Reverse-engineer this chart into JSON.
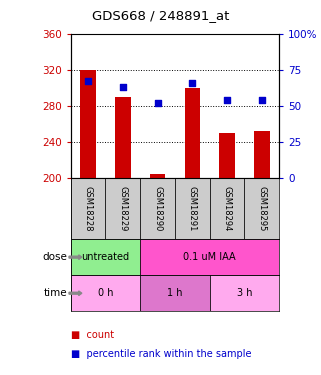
{
  "title": "GDS668 / 248891_at",
  "samples": [
    "GSM18228",
    "GSM18229",
    "GSM18290",
    "GSM18291",
    "GSM18294",
    "GSM18295"
  ],
  "bar_bottoms": [
    200,
    200,
    200,
    200,
    200,
    200
  ],
  "bar_tops": [
    320,
    290,
    205,
    300,
    250,
    252
  ],
  "percentile_values": [
    67,
    63,
    52,
    66,
    54,
    54
  ],
  "ylim_left": [
    200,
    360
  ],
  "ylim_right": [
    0,
    100
  ],
  "yticks_left": [
    200,
    240,
    280,
    320,
    360
  ],
  "yticks_right": [
    0,
    25,
    50,
    75,
    100
  ],
  "bar_color": "#cc0000",
  "dot_color": "#0000cc",
  "bar_width": 0.45,
  "dose_labels": [
    {
      "label": "untreated",
      "start": 0,
      "end": 2,
      "color": "#90ee90"
    },
    {
      "label": "0.1 uM IAA",
      "start": 2,
      "end": 6,
      "color": "#ff55cc"
    }
  ],
  "time_labels": [
    {
      "label": "0 h",
      "start": 0,
      "end": 2,
      "color": "#ffaaee"
    },
    {
      "label": "1 h",
      "start": 2,
      "end": 4,
      "color": "#dd77cc"
    },
    {
      "label": "3 h",
      "start": 4,
      "end": 6,
      "color": "#ffaaee"
    }
  ],
  "dose_arrow_label": "dose",
  "time_arrow_label": "time",
  "legend_count_color": "#cc0000",
  "legend_percentile_color": "#0000cc",
  "grid_color": "#000000",
  "left_tick_color": "#cc0000",
  "right_tick_color": "#0000cc",
  "sample_label_bg": "#cccccc"
}
